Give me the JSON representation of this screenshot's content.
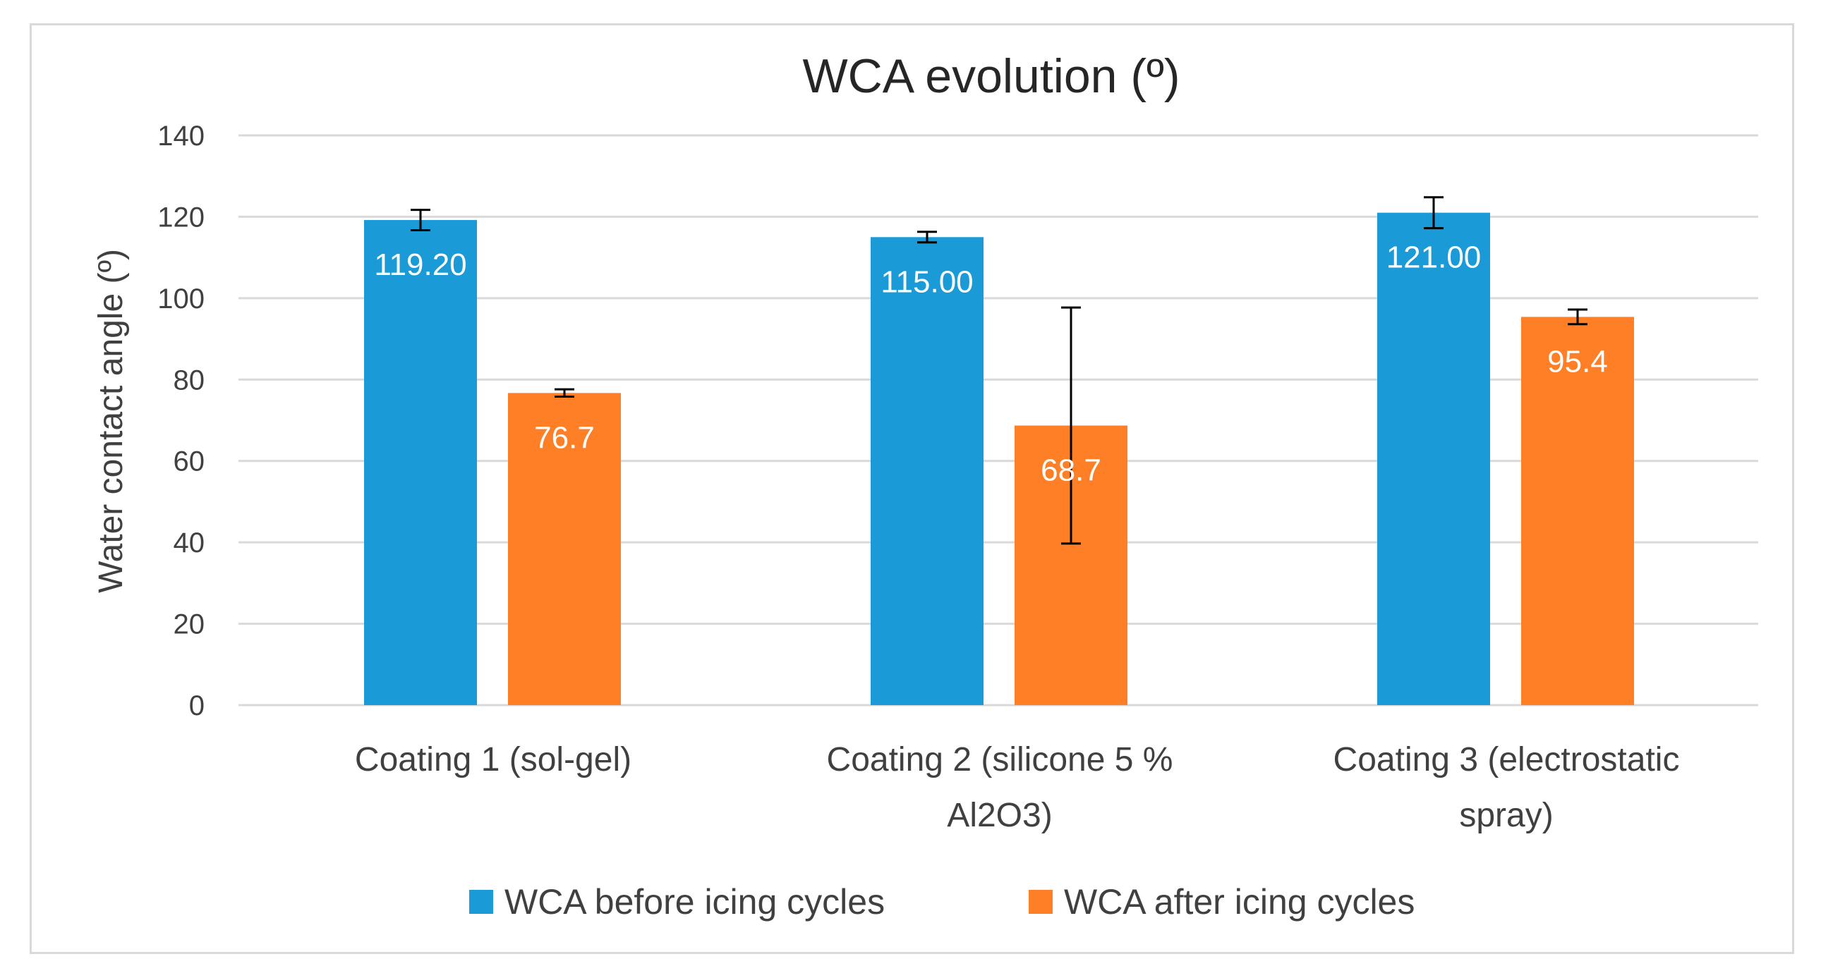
{
  "chart_data": {
    "type": "bar",
    "title": "WCA evolution (º)",
    "xlabel": "",
    "ylabel": "Water contact angle (º)",
    "ylim": [
      0,
      140
    ],
    "yticks": [
      "0",
      "20",
      "40",
      "60",
      "80",
      "100",
      "120",
      "140"
    ],
    "grid": true,
    "legend_position": "bottom",
    "categories": [
      [
        "Coating 1 (sol-gel)"
      ],
      [
        "Coating 2 (silicone 5 %",
        "Al2O3)"
      ],
      [
        "Coating 3 (electrostatic",
        "spray)"
      ]
    ],
    "series": [
      {
        "name": "WCA before icing cycles",
        "color": "#1a9bd7",
        "values": [
          119.2,
          115.0,
          121.0
        ],
        "labels": [
          "119.20",
          "115.00",
          "121.00"
        ],
        "error": [
          2.5,
          1.3,
          3.8
        ]
      },
      {
        "name": "WCA after icing cycles",
        "color": "#ff7f27",
        "values": [
          76.7,
          68.7,
          95.4
        ],
        "labels": [
          "76.7",
          "68.7",
          "95.4"
        ],
        "error": [
          0.9,
          29.0,
          1.8
        ]
      }
    ]
  }
}
